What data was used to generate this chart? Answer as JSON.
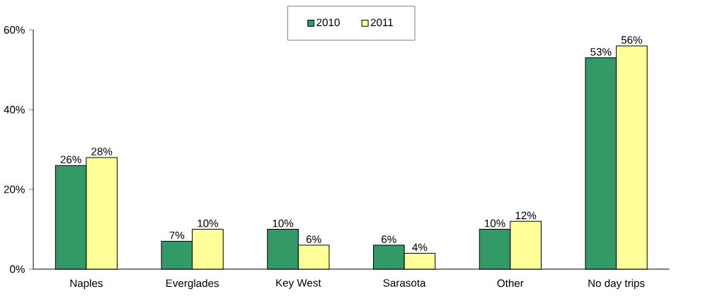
{
  "chart_data": {
    "type": "bar",
    "categories": [
      "Naples",
      "Everglades",
      "Key West",
      "Sarasota",
      "Other",
      "No day trips"
    ],
    "series": [
      {
        "name": "2010",
        "color": "#339966",
        "values": [
          26,
          7,
          10,
          6,
          10,
          53
        ],
        "value_labels": [
          "26%",
          "7%",
          "10%",
          "6%",
          "10%",
          "53%"
        ]
      },
      {
        "name": "2011",
        "color": "#ffff99",
        "values": [
          28,
          10,
          6,
          4,
          12,
          56
        ],
        "value_labels": [
          "28%",
          "10%",
          "6%",
          "4%",
          "12%",
          "56%"
        ]
      }
    ],
    "ylim": [
      0,
      60
    ],
    "yticks": [
      {
        "value": 0,
        "label": "0%"
      },
      {
        "value": 20,
        "label": "20%"
      },
      {
        "value": 40,
        "label": "40%"
      },
      {
        "value": 60,
        "label": "60%"
      }
    ],
    "legend": "top"
  }
}
